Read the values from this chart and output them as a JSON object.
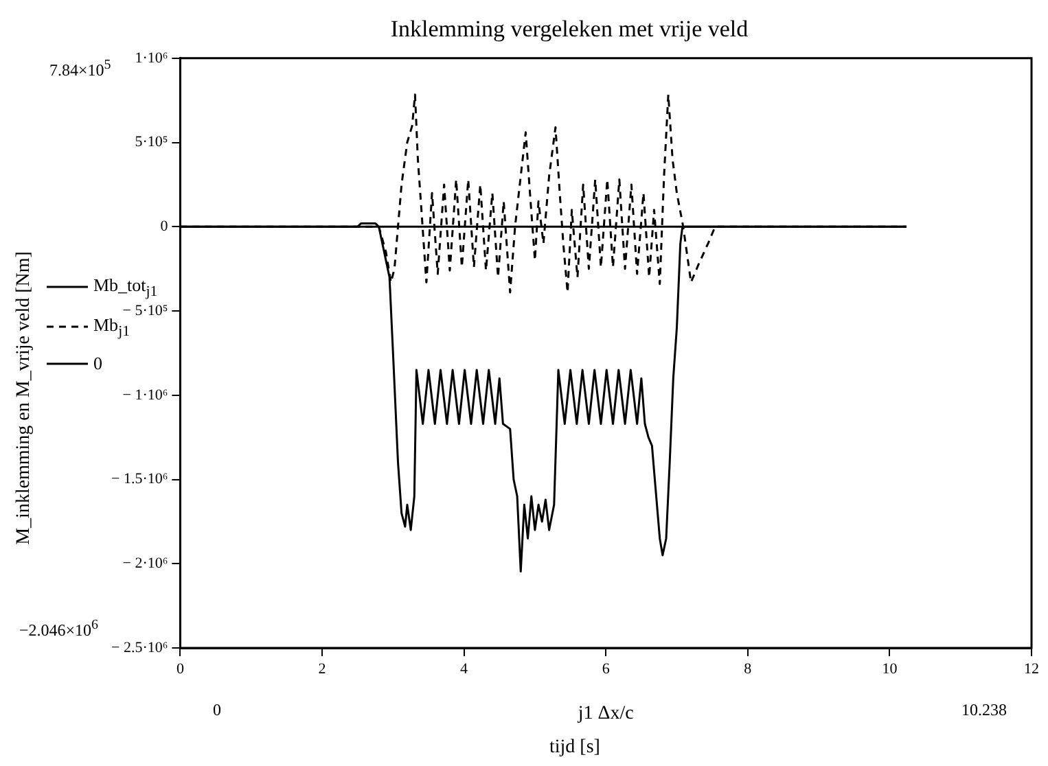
{
  "chart_data": {
    "type": "line",
    "title": "Inklemming vergeleken met vrije veld",
    "xlabel": "j1 Δx/c",
    "ylabel": "M_inklemming en M_vrije veld [Nm]",
    "annotations": [
      "7.84×10$^{5}$",
      "−2.046×10$^{6}$",
      "0",
      "10.238",
      "tijd [s]"
    ],
    "xlim": [
      0,
      12
    ],
    "xticks": [
      0,
      2,
      4,
      6,
      8,
      10,
      12
    ],
    "ylim": [
      -2500000,
      1000000
    ],
    "yticks": [
      {
        "value": 1000000,
        "label": "1·10⁶"
      },
      {
        "value": 500000,
        "label": "5·10⁵"
      },
      {
        "value": 0,
        "label": "0"
      },
      {
        "value": -500000,
        "label": "− 5·10⁵"
      },
      {
        "value": -1000000,
        "label": "− 1·10⁶"
      },
      {
        "value": -1500000,
        "label": "− 1.5·10⁶"
      },
      {
        "value": -2000000,
        "label": "− 2·10⁶"
      },
      {
        "value": -2500000,
        "label": "− 2.5·10⁶"
      }
    ],
    "grid": false,
    "legend": "left",
    "marker": "none",
    "series": [
      {
        "name": "Mb_tot$_{j1}$",
        "color": "#000000",
        "line_style": "solid",
        "x": [
          0,
          2.5,
          2.55,
          2.75,
          2.8,
          2.85,
          2.95,
          3.0,
          3.07,
          3.12,
          3.17,
          3.2,
          3.25,
          3.3,
          3.33,
          3.42,
          3.5,
          3.59,
          3.67,
          3.76,
          3.84,
          3.93,
          4.01,
          4.1,
          4.18,
          4.27,
          4.35,
          4.44,
          4.5,
          4.55,
          4.65,
          4.7,
          4.75,
          4.8,
          4.85,
          4.9,
          4.95,
          5.0,
          5.05,
          5.1,
          5.15,
          5.2,
          5.27,
          5.33,
          5.42,
          5.5,
          5.59,
          5.67,
          5.76,
          5.84,
          5.93,
          6.01,
          6.1,
          6.18,
          6.27,
          6.35,
          6.44,
          6.5,
          6.55,
          6.6,
          6.65,
          6.7,
          6.76,
          6.8,
          6.85,
          6.9,
          6.95,
          7.0,
          7.05,
          7.08,
          10.238
        ],
        "values": [
          0,
          0,
          20000,
          20000,
          0,
          -100000,
          -300000,
          -750000,
          -1400000,
          -1700000,
          -1780000,
          -1650000,
          -1800000,
          -1600000,
          -850000,
          -1170000,
          -850000,
          -1170000,
          -850000,
          -1170000,
          -850000,
          -1170000,
          -850000,
          -1170000,
          -850000,
          -1170000,
          -850000,
          -1170000,
          -900000,
          -1170000,
          -1200000,
          -1500000,
          -1600000,
          -2046000,
          -1650000,
          -1850000,
          -1600000,
          -1800000,
          -1650000,
          -1750000,
          -1620000,
          -1800000,
          -1650000,
          -850000,
          -1170000,
          -850000,
          -1170000,
          -850000,
          -1170000,
          -850000,
          -1170000,
          -850000,
          -1170000,
          -850000,
          -1170000,
          -850000,
          -1170000,
          -900000,
          -1170000,
          -1250000,
          -1300000,
          -1550000,
          -1850000,
          -1950000,
          -1850000,
          -1400000,
          -900000,
          -600000,
          -100000,
          0,
          0
        ]
      },
      {
        "name": "Mb$_{j1}$",
        "color": "#000000",
        "line_style": "dashed",
        "x": [
          0,
          2.8,
          2.9,
          2.97,
          3.02,
          3.07,
          3.12,
          3.2,
          3.27,
          3.31,
          3.35,
          3.4,
          3.47,
          3.55,
          3.63,
          3.72,
          3.8,
          3.89,
          3.97,
          4.06,
          4.14,
          4.23,
          4.31,
          4.4,
          4.48,
          4.56,
          4.65,
          4.72,
          4.8,
          4.87,
          4.93,
          5.0,
          5.05,
          5.12,
          5.2,
          5.29,
          5.35,
          5.4,
          5.46,
          5.52,
          5.6,
          5.68,
          5.76,
          5.85,
          5.93,
          6.02,
          6.1,
          6.19,
          6.27,
          6.36,
          6.44,
          6.53,
          6.61,
          6.68,
          6.76,
          6.82,
          6.88,
          6.94,
          7.0,
          7.09,
          7.2,
          7.3,
          7.44,
          7.54,
          10.238
        ],
        "values": [
          0,
          0,
          -150000,
          -330000,
          -250000,
          0,
          250000,
          500000,
          600000,
          784000,
          400000,
          100000,
          -330000,
          200000,
          -280000,
          250000,
          -260000,
          280000,
          -240000,
          280000,
          -240000,
          250000,
          -260000,
          200000,
          -300000,
          150000,
          -390000,
          0,
          300000,
          560000,
          200000,
          -200000,
          150000,
          -100000,
          300000,
          590000,
          200000,
          -100000,
          -390000,
          100000,
          -300000,
          250000,
          -250000,
          280000,
          -240000,
          280000,
          -240000,
          280000,
          -250000,
          250000,
          -280000,
          200000,
          -300000,
          100000,
          -340000,
          300000,
          784000,
          400000,
          200000,
          0,
          -330000,
          -230000,
          -100000,
          0,
          0
        ]
      },
      {
        "name": "0",
        "color": "#000000",
        "line_style": "solid",
        "x": [
          0,
          10.238
        ],
        "values": [
          0,
          0
        ]
      }
    ]
  }
}
